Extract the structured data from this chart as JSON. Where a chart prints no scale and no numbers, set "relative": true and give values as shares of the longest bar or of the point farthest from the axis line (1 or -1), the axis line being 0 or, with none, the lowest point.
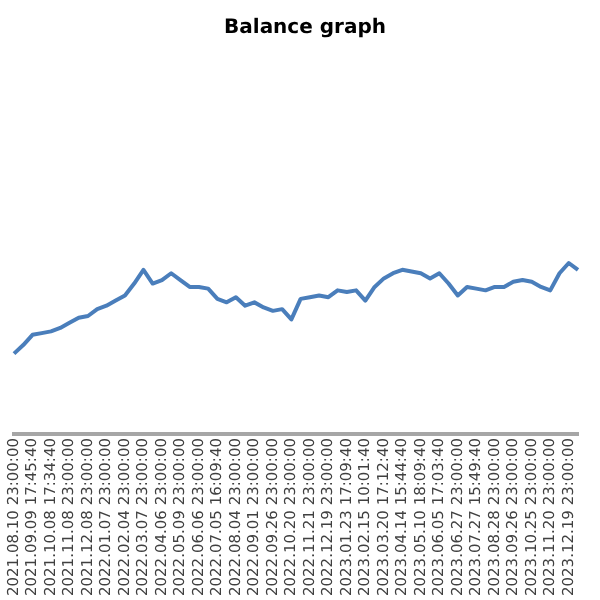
{
  "chart_data": {
    "type": "line",
    "title": "Balance graph",
    "relative": true,
    "marker": "none",
    "color": "#4a7ebb",
    "categories": [
      "2021.08.10 23:00:00",
      null,
      "2021.09.09 17:45:40",
      null,
      "2021.10.08 17:34:40",
      null,
      "2021.11.08 23:00:00",
      null,
      "2021.12.08 23:00:00",
      null,
      "2022.01.07 23:00:00",
      null,
      "2022.02.04 23:00:00",
      null,
      "2022.03.07 23:00:00",
      null,
      "2022.04.06 23:00:00",
      null,
      "2022.05.09 23:00:00",
      null,
      "2022.06.06 23:00:00",
      null,
      "2022.07.05 16:09:40",
      null,
      "2022.08.04 23:00:00",
      null,
      "2022.09.01 23:00:00",
      null,
      "2022.09.26 23:00:00",
      null,
      "2022.10.20 23:00:00",
      null,
      "2022.11.21 23:00:00",
      null,
      "2022.12.19 23:00:00",
      null,
      "2023.01.23 17:09:40",
      null,
      "2023.02.15 10:01:40",
      null,
      "2023.03.20 17:12:40",
      null,
      "2023.04.14 15:44:40",
      null,
      "2023.05.10 18:09:40",
      null,
      "2023.06.05 17:03:40",
      null,
      "2023.06.27 23:00:00",
      null,
      "2023.07.27 15:49:40",
      null,
      "2023.08.28 23:00:00",
      null,
      "2023.09.26 23:00:00",
      null,
      "2023.10.25 23:00:00",
      null,
      "2023.11.20 23:00:00",
      null,
      "2023.12.19 23:00:00",
      null
    ],
    "values": [
      0.47,
      0.52,
      0.58,
      0.59,
      0.6,
      0.62,
      0.65,
      0.68,
      0.69,
      0.73,
      0.75,
      0.78,
      0.81,
      0.88,
      0.96,
      0.88,
      0.9,
      0.94,
      0.9,
      0.86,
      0.86,
      0.85,
      0.79,
      0.77,
      0.8,
      0.75,
      0.77,
      0.74,
      0.72,
      0.73,
      0.67,
      0.79,
      0.8,
      0.81,
      0.8,
      0.84,
      0.83,
      0.84,
      0.78,
      0.86,
      0.91,
      0.94,
      0.96,
      0.95,
      0.94,
      0.91,
      0.94,
      0.88,
      0.81,
      0.86,
      0.85,
      0.84,
      0.86,
      0.86,
      0.89,
      0.9,
      0.89,
      0.86,
      0.84,
      0.94,
      1,
      0.96
    ]
  }
}
